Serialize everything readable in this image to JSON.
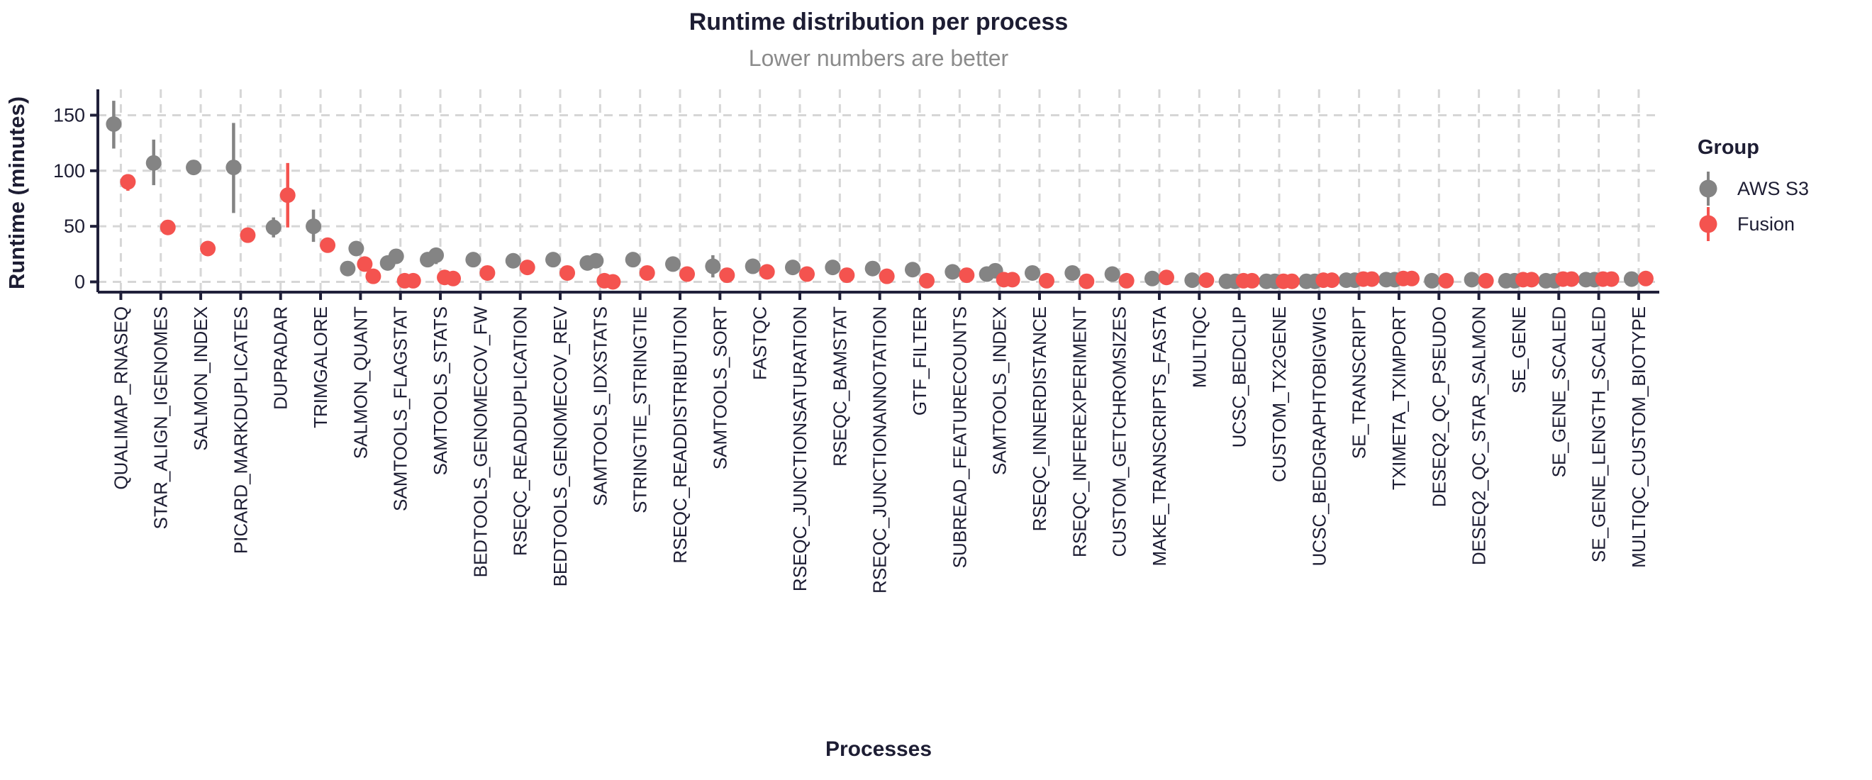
{
  "header": {
    "title": "Runtime distribution per process",
    "subtitle": "Lower numbers are better"
  },
  "legend": {
    "title": "Group",
    "items": [
      {
        "label": "AWS S3",
        "color": "#848484"
      },
      {
        "label": "Fusion",
        "color": "#f4534f"
      }
    ]
  },
  "colors": {
    "text_dark": "#1d1d33",
    "subtitle_gray": "#8b8b8b",
    "grid_gray": "#d6d6d6",
    "axis_dark": "#20203a",
    "aws_gray": "#848484",
    "fusion_red": "#f4534f"
  },
  "chart_data": {
    "type": "scatter",
    "title": "Runtime distribution per process",
    "subtitle": "Lower numbers are better",
    "xlabel": "Processes",
    "ylabel": "Runtime (minutes)",
    "y_ticks": [
      0,
      50,
      100,
      150
    ],
    "ylim": [
      0,
      172
    ],
    "grid": true,
    "legend_position": "right",
    "point_style": "pointrange (median dot with min-max bar), dodged/jittered by group",
    "categories": [
      "QUALIMAP_RNASEQ",
      "STAR_ALIGN_IGENOMES",
      "SALMON_INDEX",
      "PICARD_MARKDUPLICATES",
      "DUPRADAR",
      "TRIMGALORE",
      "SALMON_QUANT",
      "SAMTOOLS_FLAGSTAT",
      "SAMTOOLS_STATS",
      "BEDTOOLS_GENOMECOV_FW",
      "RSEQC_READDUPLICATION",
      "BEDTOOLS_GENOMECOV_REV",
      "SAMTOOLS_IDXSTATS",
      "STRINGTIE_STRINGTIE",
      "RSEQC_READDISTRIBUTION",
      "SAMTOOLS_SORT",
      "FASTQC",
      "RSEQC_JUNCTIONSATURATION",
      "RSEQC_BAMSTAT",
      "RSEQC_JUNCTIONANNOTATION",
      "GTF_FILTER",
      "SUBREAD_FEATURECOUNTS",
      "SAMTOOLS_INDEX",
      "RSEQC_INNERDISTANCE",
      "RSEQC_INFEREXPERIMENT",
      "CUSTOM_GETCHROMSIZES",
      "MAKE_TRANSCRIPTS_FASTA",
      "MULTIQC",
      "UCSC_BEDCLIP",
      "CUSTOM_TX2GENE",
      "UCSC_BEDGRAPHTOBIGWIG",
      "SE_TRANSCRIPT",
      "TXIMETA_TXIMPORT",
      "DESEQ2_QC_PSEUDO",
      "DESEQ2_QC_STAR_SALMON",
      "SE_GENE",
      "SE_GENE_SCALED",
      "SE_GENE_LENGTH_SCALED",
      "MULTIQC_CUSTOM_BIOTYPE"
    ],
    "series": [
      {
        "name": "AWS S3",
        "color": "#848484",
        "points": [
          {
            "values": [
              142
            ],
            "range": [
              120,
              163
            ]
          },
          {
            "values": [
              107
            ],
            "range": [
              87,
              128
            ]
          },
          {
            "values": [
              103
            ]
          },
          {
            "values": [
              103
            ],
            "range": [
              62,
              143
            ]
          },
          {
            "values": [
              49
            ],
            "range": [
              40,
              58
            ]
          },
          {
            "values": [
              50
            ],
            "range": [
              36,
              65
            ]
          },
          {
            "values": [
              30,
              12
            ]
          },
          {
            "values": [
              23,
              17
            ]
          },
          {
            "values": [
              24,
              20
            ],
            "range": [
              16,
              27
            ]
          },
          {
            "values": [
              20
            ]
          },
          {
            "values": [
              19
            ]
          },
          {
            "values": [
              20
            ]
          },
          {
            "values": [
              19,
              17
            ]
          },
          {
            "values": [
              20
            ]
          },
          {
            "values": [
              16
            ]
          },
          {
            "values": [
              14
            ],
            "range": [
              4,
              24
            ]
          },
          {
            "values": [
              14
            ]
          },
          {
            "values": [
              13
            ]
          },
          {
            "values": [
              13
            ]
          },
          {
            "values": [
              12
            ]
          },
          {
            "values": [
              11
            ]
          },
          {
            "values": [
              9
            ]
          },
          {
            "values": [
              10,
              7
            ]
          },
          {
            "values": [
              8
            ]
          },
          {
            "values": [
              8
            ]
          },
          {
            "values": [
              7
            ]
          },
          {
            "values": [
              3
            ]
          },
          {
            "values": [
              1.5
            ]
          },
          {
            "values": [
              0.5,
              0.5
            ]
          },
          {
            "values": [
              0.5,
              0.5
            ]
          },
          {
            "values": [
              0.5,
              0.5
            ]
          },
          {
            "values": [
              1.5,
              1.5
            ]
          },
          {
            "values": [
              2,
              2
            ]
          },
          {
            "values": [
              1
            ]
          },
          {
            "values": [
              2
            ]
          },
          {
            "values": [
              1,
              1
            ]
          },
          {
            "values": [
              1,
              1
            ]
          },
          {
            "values": [
              2,
              2
            ]
          },
          {
            "values": [
              2.5
            ]
          }
        ]
      },
      {
        "name": "Fusion",
        "color": "#f4534f",
        "points": [
          {
            "values": [
              90
            ],
            "range": [
              82,
              97
            ]
          },
          {
            "values": [
              49
            ]
          },
          {
            "values": [
              30
            ]
          },
          {
            "values": [
              42
            ]
          },
          {
            "values": [
              78
            ],
            "range": [
              49,
              107
            ]
          },
          {
            "values": [
              33
            ]
          },
          {
            "values": [
              16,
              5
            ]
          },
          {
            "values": [
              1,
              1
            ]
          },
          {
            "values": [
              4,
              3
            ]
          },
          {
            "values": [
              8
            ]
          },
          {
            "values": [
              13
            ]
          },
          {
            "values": [
              8
            ]
          },
          {
            "values": [
              1,
              0
            ]
          },
          {
            "values": [
              8
            ]
          },
          {
            "values": [
              7
            ]
          },
          {
            "values": [
              6
            ]
          },
          {
            "values": [
              9
            ]
          },
          {
            "values": [
              7
            ]
          },
          {
            "values": [
              6
            ]
          },
          {
            "values": [
              5
            ]
          },
          {
            "values": [
              1
            ]
          },
          {
            "values": [
              6
            ]
          },
          {
            "values": [
              2,
              2
            ]
          },
          {
            "values": [
              1
            ]
          },
          {
            "values": [
              0.5
            ]
          },
          {
            "values": [
              1
            ]
          },
          {
            "values": [
              4
            ]
          },
          {
            "values": [
              1.5
            ]
          },
          {
            "values": [
              1,
              1
            ]
          },
          {
            "values": [
              0.5,
              0.5
            ]
          },
          {
            "values": [
              1.5,
              1.5
            ]
          },
          {
            "values": [
              2.5,
              2.5
            ]
          },
          {
            "values": [
              3,
              3
            ]
          },
          {
            "values": [
              1
            ]
          },
          {
            "values": [
              1
            ]
          },
          {
            "values": [
              2,
              2
            ]
          },
          {
            "values": [
              2.5,
              2.5
            ]
          },
          {
            "values": [
              2.5,
              2.5
            ]
          },
          {
            "values": [
              3
            ]
          }
        ]
      }
    ]
  }
}
